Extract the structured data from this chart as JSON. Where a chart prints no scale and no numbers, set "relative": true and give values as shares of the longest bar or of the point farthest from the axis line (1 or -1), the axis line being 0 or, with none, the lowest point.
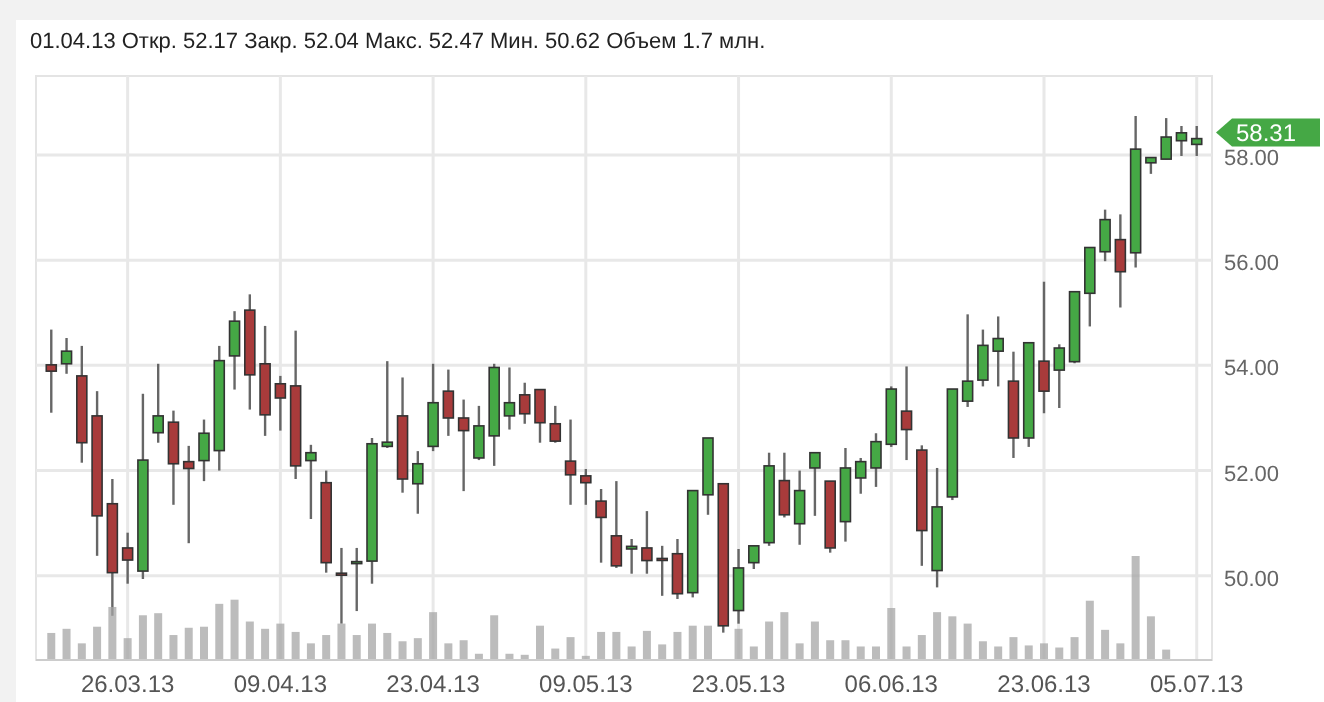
{
  "chart_data": [
    {
      "type": "candlestick",
      "subtitle": "01.04.13 Откр. 52.17 Закр. 52.04 Макс. 52.47 Мин. 50.62 Объем 1.7 млн.",
      "categories": [
        null,
        null,
        null,
        null,
        null,
        "26.03.13",
        null,
        null,
        null,
        null,
        null,
        null,
        null,
        null,
        null,
        "09.04.13",
        null,
        null,
        null,
        null,
        null,
        null,
        null,
        null,
        null,
        "23.04.13",
        null,
        null,
        null,
        null,
        null,
        null,
        null,
        null,
        null,
        "09.05.13",
        null,
        null,
        null,
        null,
        null,
        null,
        null,
        null,
        null,
        "23.05.13",
        null,
        null,
        null,
        null,
        null,
        null,
        null,
        null,
        null,
        "06.06.13",
        null,
        null,
        null,
        null,
        null,
        null,
        null,
        null,
        null,
        "23.06.13",
        null,
        null,
        null,
        null,
        null,
        null,
        null,
        null,
        null,
        "05.07.13"
      ],
      "ohlc": [
        [
          54.01,
          54.68,
          53.1,
          53.89
        ],
        [
          54.03,
          54.52,
          53.84,
          54.27
        ],
        [
          53.8,
          54.37,
          52.15,
          52.53
        ],
        [
          53.04,
          53.51,
          50.38,
          51.14
        ],
        [
          51.37,
          51.84,
          49.24,
          50.06
        ],
        [
          50.53,
          50.82,
          49.85,
          50.3
        ],
        [
          50.09,
          53.46,
          49.94,
          52.2
        ],
        [
          52.72,
          54.03,
          52.53,
          53.04
        ],
        [
          52.92,
          53.14,
          51.35,
          52.13
        ],
        [
          52.17,
          52.47,
          50.62,
          52.04
        ],
        [
          52.19,
          52.97,
          51.8,
          52.71
        ],
        [
          52.38,
          54.37,
          52.0,
          54.09
        ],
        [
          54.18,
          55.03,
          53.54,
          54.84
        ],
        [
          55.05,
          55.35,
          53.16,
          53.82
        ],
        [
          54.03,
          54.75,
          52.66,
          53.06
        ],
        [
          53.65,
          53.8,
          52.76,
          53.38
        ],
        [
          53.61,
          54.66,
          51.84,
          52.09
        ],
        [
          52.19,
          52.49,
          51.08,
          52.34
        ],
        [
          51.77,
          52.0,
          50.06,
          50.25
        ],
        [
          50.05,
          50.53,
          49.09,
          50.03
        ],
        [
          50.25,
          50.53,
          49.33,
          50.27
        ],
        [
          50.28,
          52.62,
          49.85,
          52.51
        ],
        [
          52.46,
          54.08,
          52.43,
          52.54
        ],
        [
          53.04,
          53.77,
          51.58,
          51.84
        ],
        [
          51.75,
          52.37,
          51.18,
          52.13
        ],
        [
          52.46,
          54.03,
          52.37,
          53.29
        ],
        [
          53.51,
          53.92,
          52.66,
          53.0
        ],
        [
          53.0,
          53.35,
          51.61,
          52.76
        ],
        [
          52.24,
          53.23,
          52.2,
          52.85
        ],
        [
          52.66,
          54.03,
          52.09,
          53.96
        ],
        [
          53.04,
          53.96,
          52.78,
          53.29
        ],
        [
          53.44,
          53.67,
          52.89,
          53.08
        ],
        [
          53.54,
          53.54,
          52.53,
          52.91
        ],
        [
          52.89,
          53.23,
          52.53,
          52.56
        ],
        [
          52.18,
          52.97,
          51.35,
          51.92
        ],
        [
          51.9,
          52.03,
          51.35,
          51.77
        ],
        [
          51.42,
          51.65,
          50.25,
          51.11
        ],
        [
          50.76,
          51.8,
          50.15,
          50.19
        ],
        [
          50.51,
          50.7,
          50.04,
          50.56
        ],
        [
          50.53,
          51.23,
          50.04,
          50.29
        ],
        [
          50.33,
          50.57,
          49.62,
          50.3
        ],
        [
          50.42,
          50.7,
          49.56,
          49.66
        ],
        [
          49.68,
          51.62,
          49.59,
          51.62
        ],
        [
          51.54,
          52.62,
          51.16,
          52.62
        ],
        [
          51.75,
          51.75,
          48.92,
          49.05
        ],
        [
          49.34,
          50.51,
          49.09,
          50.15
        ],
        [
          50.25,
          50.57,
          50.13,
          50.57
        ],
        [
          50.63,
          52.34,
          50.57,
          52.09
        ],
        [
          51.81,
          52.34,
          51.11,
          51.16
        ],
        [
          50.99,
          52.0,
          50.59,
          51.62
        ],
        [
          52.05,
          52.34,
          51.14,
          52.34
        ],
        [
          51.8,
          51.8,
          50.44,
          50.53
        ],
        [
          51.03,
          52.43,
          50.65,
          52.05
        ],
        [
          51.86,
          52.24,
          51.56,
          52.17
        ],
        [
          52.05,
          52.71,
          51.69,
          52.55
        ],
        [
          52.5,
          53.6,
          52.45,
          53.55
        ],
        [
          53.13,
          53.98,
          52.2,
          52.78
        ],
        [
          52.39,
          52.48,
          50.19,
          50.86
        ],
        [
          50.1,
          52.05,
          49.78,
          51.31
        ],
        [
          51.5,
          53.55,
          51.44,
          53.55
        ],
        [
          53.32,
          54.97,
          53.21,
          53.7
        ],
        [
          53.72,
          54.68,
          53.6,
          54.38
        ],
        [
          54.27,
          54.93,
          53.6,
          54.51
        ],
        [
          53.7,
          54.26,
          52.24,
          52.62
        ],
        [
          52.62,
          54.43,
          52.45,
          54.43
        ],
        [
          54.08,
          55.59,
          53.09,
          53.51
        ],
        [
          53.91,
          54.4,
          53.19,
          54.33
        ],
        [
          54.07,
          55.4,
          54.04,
          55.4
        ],
        [
          55.37,
          56.24,
          54.74,
          56.24
        ],
        [
          56.16,
          56.96,
          55.98,
          56.77
        ],
        [
          56.39,
          56.87,
          55.1,
          55.78
        ],
        [
          56.14,
          58.74,
          55.86,
          58.11
        ],
        [
          57.85,
          57.95,
          57.64,
          57.95
        ],
        [
          57.92,
          58.7,
          57.92,
          58.34
        ],
        [
          58.27,
          58.55,
          57.98,
          58.42
        ],
        [
          58.2,
          58.55,
          57.98,
          58.31
        ]
      ],
      "ylim": [
        48.4,
        59.5
      ],
      "yticks": [
        {
          "value": 50,
          "label": "50.00"
        },
        {
          "value": 52,
          "label": "52.00"
        },
        {
          "value": 54,
          "label": "54.00"
        },
        {
          "value": 56,
          "label": "56.00"
        },
        {
          "value": 58,
          "label": "58.00"
        }
      ],
      "grid": true,
      "annotations": [
        "58.31"
      ]
    },
    {
      "type": "bar",
      "relative": true,
      "color": "#a6a6a6",
      "categories": [
        null,
        null,
        null,
        null,
        null,
        null,
        null,
        null,
        null,
        null,
        null,
        null,
        null,
        null,
        null,
        null,
        null,
        null,
        null,
        null,
        null,
        null,
        null,
        null,
        null,
        null,
        null,
        null,
        null,
        null,
        null,
        null,
        null,
        null,
        null,
        null,
        null,
        null,
        null,
        null,
        null,
        null,
        null,
        null,
        null,
        null,
        null,
        null,
        null,
        null,
        null,
        null,
        null,
        null,
        null,
        null,
        null,
        null,
        null,
        null,
        null,
        null,
        null,
        null,
        null,
        null,
        null,
        null,
        null,
        null,
        null,
        null,
        null,
        null,
        null,
        null
      ],
      "values": [
        0.26,
        0.3,
        0.16,
        0.32,
        0.51,
        0.21,
        0.43,
        0.45,
        0.24,
        0.31,
        0.32,
        0.54,
        0.58,
        0.37,
        0.3,
        0.35,
        0.27,
        0.16,
        0.24,
        0.35,
        0.24,
        0.35,
        0.26,
        0.18,
        0.21,
        0.46,
        0.16,
        0.19,
        0.06,
        0.43,
        0.06,
        0.05,
        0.33,
        0.11,
        0.22,
        0.04,
        0.27,
        0.27,
        0.13,
        0.28,
        0.15,
        0.27,
        0.33,
        0.33,
        null,
        0.3,
        0.13,
        0.37,
        0.46,
        0.16,
        0.37,
        0.19,
        0.19,
        0.13,
        0.13,
        0.5,
        0.13,
        0.24,
        0.46,
        0.42,
        0.35,
        0.18,
        0.13,
        0.22,
        0.14,
        0.16,
        0.12,
        0.22,
        0.57,
        0.29,
        0.16,
        1.0,
        0.42,
        0.1,
        null,
        null
      ]
    }
  ]
}
